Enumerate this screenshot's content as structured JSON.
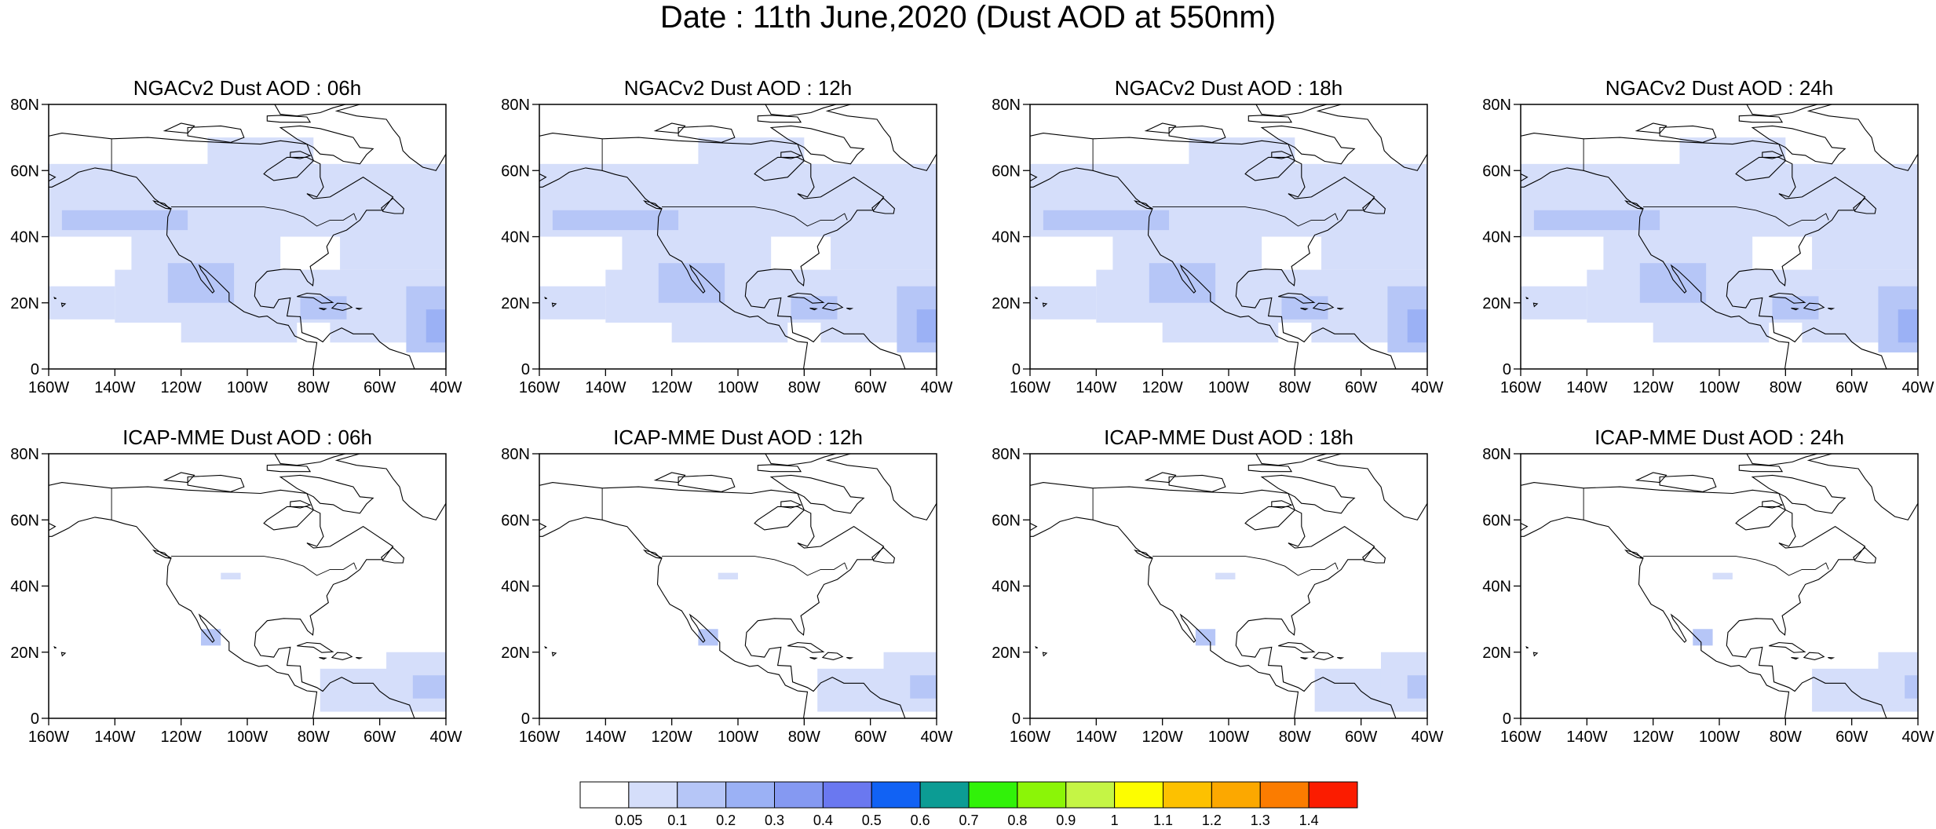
{
  "figure": {
    "title": "Date : 11th June,2020 (Dust AOD at 550nm)"
  },
  "map_axes": {
    "x_ticks": [
      "160W",
      "140W",
      "120W",
      "100W",
      "80W",
      "60W",
      "40W"
    ],
    "y_ticks": [
      "80N",
      "60N",
      "40N",
      "20N",
      "0"
    ],
    "lon_range": [
      -160,
      -40
    ],
    "lat_range": [
      0,
      80
    ]
  },
  "panels": [
    {
      "title": "NGACv2 Dust AOD : 06h",
      "model": "NGACv2",
      "hour": "06h"
    },
    {
      "title": "NGACv2 Dust AOD : 12h",
      "model": "NGACv2",
      "hour": "12h"
    },
    {
      "title": "NGACv2 Dust AOD : 18h",
      "model": "NGACv2",
      "hour": "18h"
    },
    {
      "title": "NGACv2 Dust AOD : 24h",
      "model": "NGACv2",
      "hour": "24h"
    },
    {
      "title": "ICAP-MME Dust AOD : 06h",
      "model": "ICAP-MME",
      "hour": "06h"
    },
    {
      "title": "ICAP-MME Dust AOD : 12h",
      "model": "ICAP-MME",
      "hour": "12h"
    },
    {
      "title": "ICAP-MME Dust AOD : 18h",
      "model": "ICAP-MME",
      "hour": "18h"
    },
    {
      "title": "ICAP-MME Dust AOD : 24h",
      "model": "ICAP-MME",
      "hour": "24h"
    }
  ],
  "colorbar": {
    "labels": [
      "0.05",
      "0.1",
      "0.2",
      "0.3",
      "0.4",
      "0.5",
      "0.6",
      "0.7",
      "0.8",
      "0.9",
      "1",
      "1.1",
      "1.2",
      "1.3",
      "1.4"
    ],
    "colors": [
      "#ffffff",
      "#d5defa",
      "#b6c6f7",
      "#9bb1f5",
      "#8599f2",
      "#6a78f0",
      "#1162f4",
      "#0c9c94",
      "#31f209",
      "#8bf507",
      "#c5f545",
      "#fdfd00",
      "#fdc100",
      "#fca800",
      "#fb7c00",
      "#fb1c00"
    ]
  },
  "colors": {
    "land_outline": "#000000",
    "aod_0_05_0_1": "#d5defa",
    "aod_0_1_0_2": "#b6c6f7",
    "aod_0_2_0_3": "#9bb1f5"
  }
}
